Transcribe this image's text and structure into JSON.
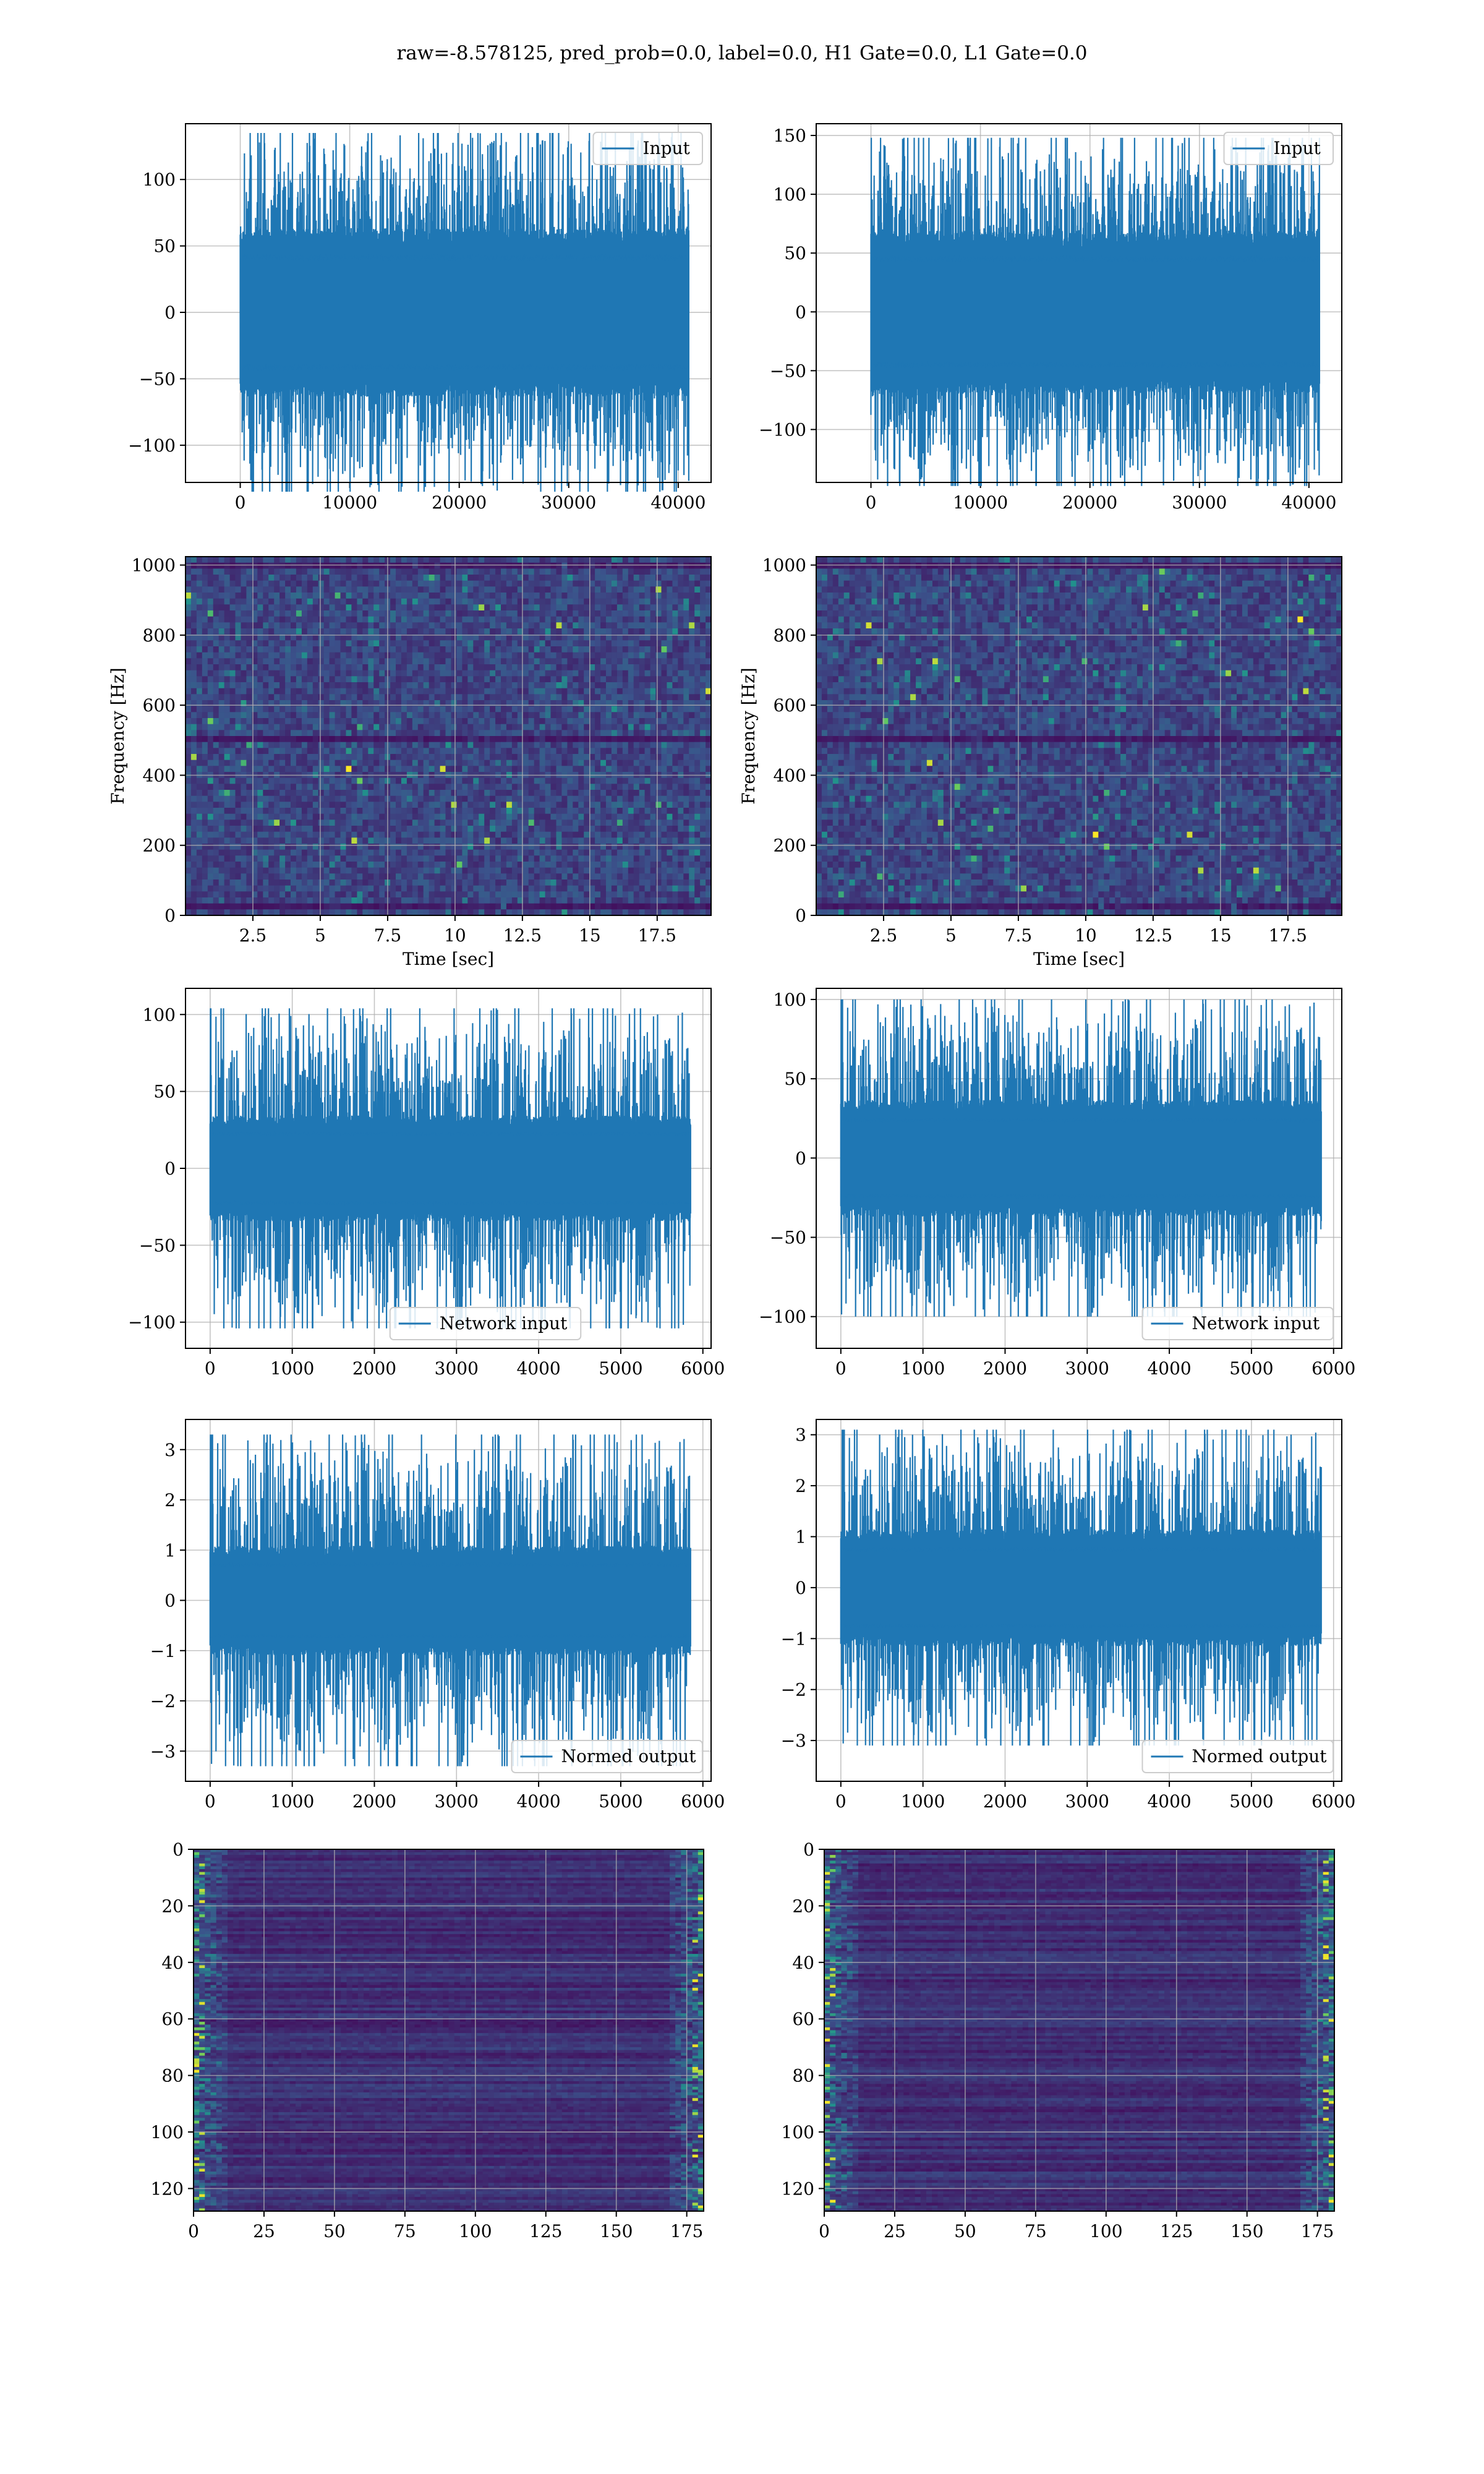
{
  "figure": {
    "title": "raw=-8.578125, pred_prob=0.0, label=0.0, H1 Gate=0.0, L1 Gate=0.0"
  },
  "colors": {
    "series": "#1f77b4",
    "grid": "#b0b0b0",
    "viridis_low": "#440154",
    "viridis_mid": "#21918c",
    "viridis_high": "#fde725"
  },
  "chart_data": [
    {
      "id": "input-left",
      "type": "line",
      "xlim": [
        -5000,
        43000
      ],
      "ylim": [
        -128,
        142
      ],
      "xticks": [
        0,
        10000,
        20000,
        30000,
        40000
      ],
      "yticks": [
        -100,
        -50,
        0,
        50,
        100
      ],
      "x_range": [
        0,
        40960
      ],
      "band_amplitude": 55,
      "peak_amplitude": 135,
      "series": [
        {
          "name": "Input"
        }
      ],
      "legend": "upper right",
      "grid": true
    },
    {
      "id": "input-right",
      "type": "line",
      "xlim": [
        -5000,
        43000
      ],
      "ylim": [
        -145,
        160
      ],
      "xticks": [
        0,
        10000,
        20000,
        30000,
        40000
      ],
      "yticks": [
        -100,
        -50,
        0,
        50,
        100,
        150
      ],
      "x_range": [
        0,
        40960
      ],
      "band_amplitude": 60,
      "peak_amplitude": 148,
      "series": [
        {
          "name": "Input"
        }
      ],
      "legend": "upper right",
      "grid": true
    },
    {
      "id": "spec-left",
      "type": "heatmap",
      "xlim": [
        0,
        19.5
      ],
      "ylim": [
        0,
        1024
      ],
      "xticks": [
        2.5,
        5.0,
        7.5,
        10.0,
        12.5,
        15.0,
        17.5
      ],
      "yticks": [
        0,
        200,
        400,
        600,
        800,
        1000
      ],
      "xlabel": "Time [sec]",
      "ylabel": "Frequency [Hz]",
      "grid": true
    },
    {
      "id": "spec-right",
      "type": "heatmap",
      "xlim": [
        0,
        19.5
      ],
      "ylim": [
        0,
        1024
      ],
      "xticks": [
        2.5,
        5.0,
        7.5,
        10.0,
        12.5,
        15.0,
        17.5
      ],
      "yticks": [
        0,
        200,
        400,
        600,
        800,
        1000
      ],
      "xlabel": "Time [sec]",
      "ylabel": "Frequency [Hz]",
      "grid": true
    },
    {
      "id": "net-left",
      "type": "line",
      "xlim": [
        -300,
        6100
      ],
      "ylim": [
        -117,
        117
      ],
      "xticks": [
        0,
        1000,
        2000,
        3000,
        4000,
        5000,
        6000
      ],
      "yticks": [
        -100,
        -50,
        0,
        50,
        100
      ],
      "x_range": [
        0,
        5850
      ],
      "band_amplitude": 30,
      "peak_amplitude": 104,
      "series": [
        {
          "name": "Network input"
        }
      ],
      "legend": "lower center",
      "grid": true
    },
    {
      "id": "net-right",
      "type": "line",
      "xlim": [
        -300,
        6100
      ],
      "ylim": [
        -120,
        107
      ],
      "xticks": [
        0,
        1000,
        2000,
        3000,
        4000,
        5000,
        6000
      ],
      "yticks": [
        -100,
        -50,
        0,
        50,
        100
      ],
      "x_range": [
        0,
        5850
      ],
      "band_amplitude": 32,
      "peak_amplitude": 100,
      "series": [
        {
          "name": "Network input"
        }
      ],
      "legend": "lower right",
      "grid": true
    },
    {
      "id": "norm-left",
      "type": "line",
      "xlim": [
        -300,
        6100
      ],
      "ylim": [
        -3.6,
        3.6
      ],
      "xticks": [
        0,
        1000,
        2000,
        3000,
        4000,
        5000,
        6000
      ],
      "yticks": [
        -3,
        -2,
        -1,
        0,
        1,
        2,
        3
      ],
      "x_range": [
        0,
        5850
      ],
      "band_amplitude": 0.95,
      "peak_amplitude": 3.3,
      "series": [
        {
          "name": "Normed output"
        }
      ],
      "legend": "lower right",
      "grid": true
    },
    {
      "id": "norm-right",
      "type": "line",
      "xlim": [
        -300,
        6100
      ],
      "ylim": [
        -3.8,
        3.3
      ],
      "xticks": [
        0,
        1000,
        2000,
        3000,
        4000,
        5000,
        6000
      ],
      "yticks": [
        -3,
        -2,
        -1,
        0,
        1,
        2,
        3
      ],
      "x_range": [
        0,
        5850
      ],
      "band_amplitude": 1.0,
      "peak_amplitude": 3.1,
      "series": [
        {
          "name": "Normed output"
        }
      ],
      "legend": "lower right",
      "grid": true
    },
    {
      "id": "feat-left",
      "type": "heatmap",
      "xlim": [
        0,
        181
      ],
      "ylim": [
        0,
        128
      ],
      "y_inverted": true,
      "xticks": [
        0,
        25,
        50,
        75,
        100,
        125,
        150,
        175
      ],
      "yticks": [
        0,
        20,
        40,
        60,
        80,
        100,
        120
      ],
      "grid": true
    },
    {
      "id": "feat-right",
      "type": "heatmap",
      "xlim": [
        0,
        181
      ],
      "ylim": [
        0,
        128
      ],
      "y_inverted": true,
      "xticks": [
        0,
        25,
        50,
        75,
        100,
        125,
        150,
        175
      ],
      "yticks": [
        0,
        20,
        40,
        60,
        80,
        100,
        120
      ],
      "grid": true
    }
  ]
}
